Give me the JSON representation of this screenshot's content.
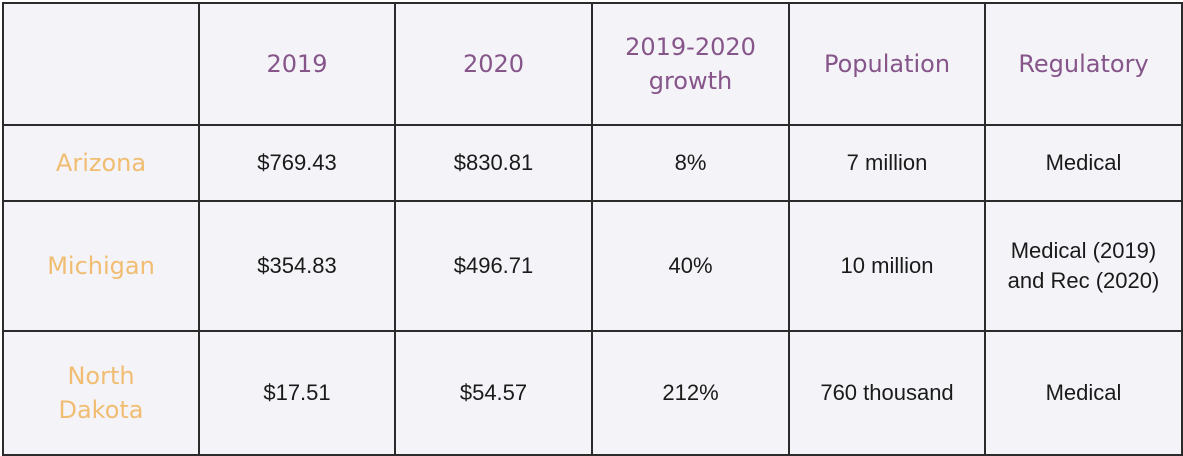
{
  "table": {
    "corner": "",
    "headers": [
      "2019",
      "2020",
      "2019-2020 growth",
      "Population",
      "Regulatory"
    ],
    "rows": [
      {
        "state": "Arizona",
        "y2019": "$769.43",
        "y2020": "$830.81",
        "growth": "8%",
        "population": "7 million",
        "regulatory": "Medical"
      },
      {
        "state": "Michigan",
        "y2019": "$354.83",
        "y2020": "$496.71",
        "growth": "40%",
        "population": "10 million",
        "regulatory": "Medical (2019) and Rec (2020)"
      },
      {
        "state": "North Dakota",
        "y2019": "$17.51",
        "y2020": "$54.57",
        "growth": "212%",
        "population": "760 thousand",
        "regulatory": "Medical"
      }
    ]
  },
  "colors": {
    "header_text": "#86558a",
    "state_text": "#f0bd72",
    "value_text": "#1a1a1a",
    "cell_background": "#f4f3f8",
    "border": "#2b2b2b"
  }
}
